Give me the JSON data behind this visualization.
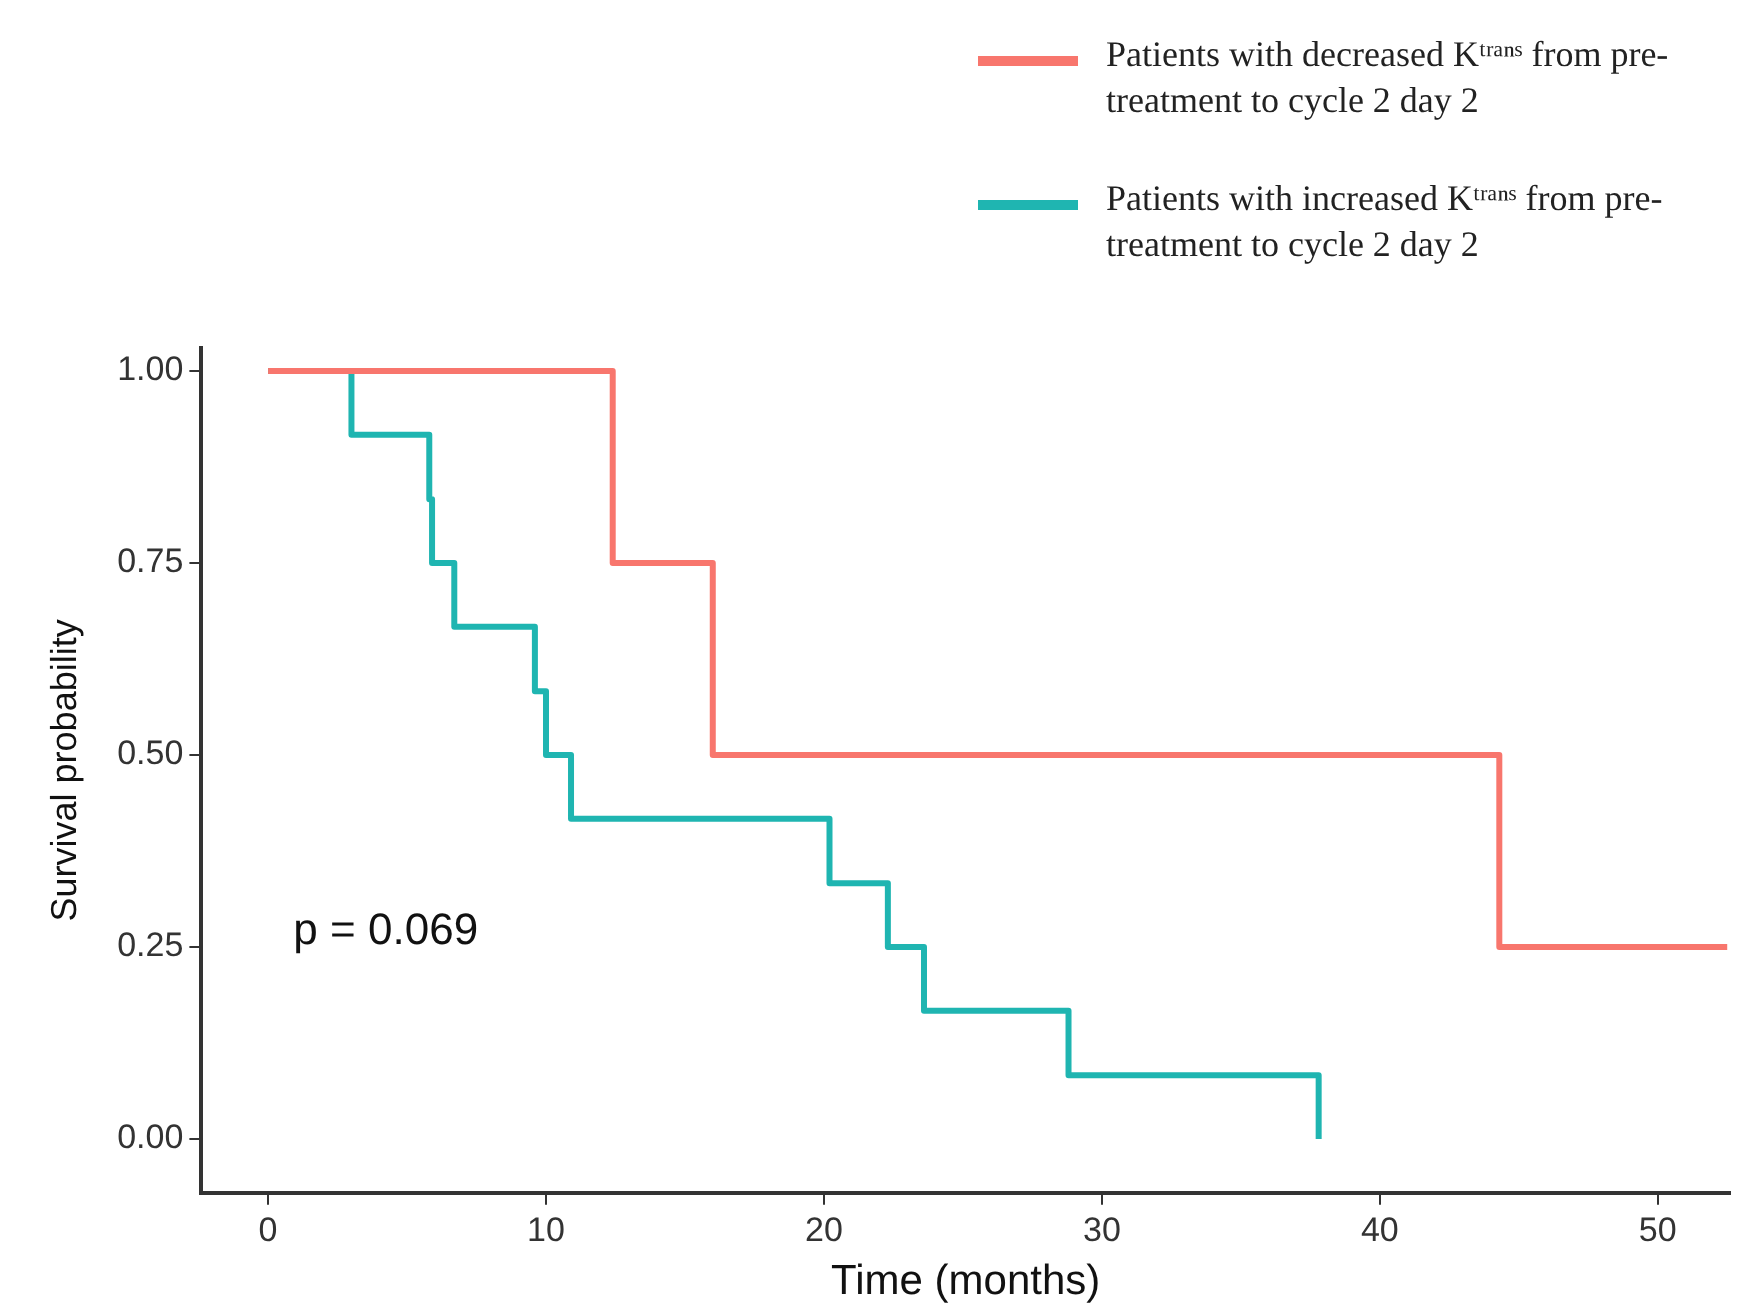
{
  "chart_data": {
    "type": "step",
    "xlabel": "Time (months)",
    "ylabel": "Survival probability",
    "xlim": [
      -2.4,
      52.6
    ],
    "xticks": [
      0,
      10,
      20,
      30,
      40,
      50
    ],
    "ylim": [
      -0.07,
      1.03
    ],
    "yticks": [
      {
        "value": 0,
        "label": "0.00"
      },
      {
        "value": 0.25,
        "label": "0.25"
      },
      {
        "value": 0.5,
        "label": "0.50"
      },
      {
        "value": 0.75,
        "label": "0.75"
      },
      {
        "value": 1,
        "label": "1.00"
      }
    ],
    "grid": false,
    "legend": "top right",
    "marker": "none",
    "line_style": "solid",
    "annotations": [
      "p = 0.069"
    ],
    "series": [
      {
        "name": "Patients with decreased Kᵗʳᵃⁿˢ from pre-treatment to cycle 2 day 2",
        "color": "#f8766d",
        "x": [
          0,
          12.4,
          16.0,
          44.3,
          52.5
        ],
        "values": [
          1,
          0.75,
          0.5,
          0.25,
          0.25
        ]
      },
      {
        "name": "Patients with increased Kᵗʳᵃⁿˢ from pre-treatment to cycle 2 day 2",
        "color": "#1fb5b1",
        "x": [
          0,
          3.0,
          5.8,
          5.9,
          6.7,
          9.6,
          10.0,
          10.9,
          20.2,
          22.3,
          23.6,
          28.8,
          37.8
        ],
        "values": [
          1,
          0.917,
          0.833,
          0.75,
          0.667,
          0.583,
          0.5,
          0.417,
          0.333,
          0.25,
          0.167,
          0.083,
          0
        ]
      }
    ]
  }
}
